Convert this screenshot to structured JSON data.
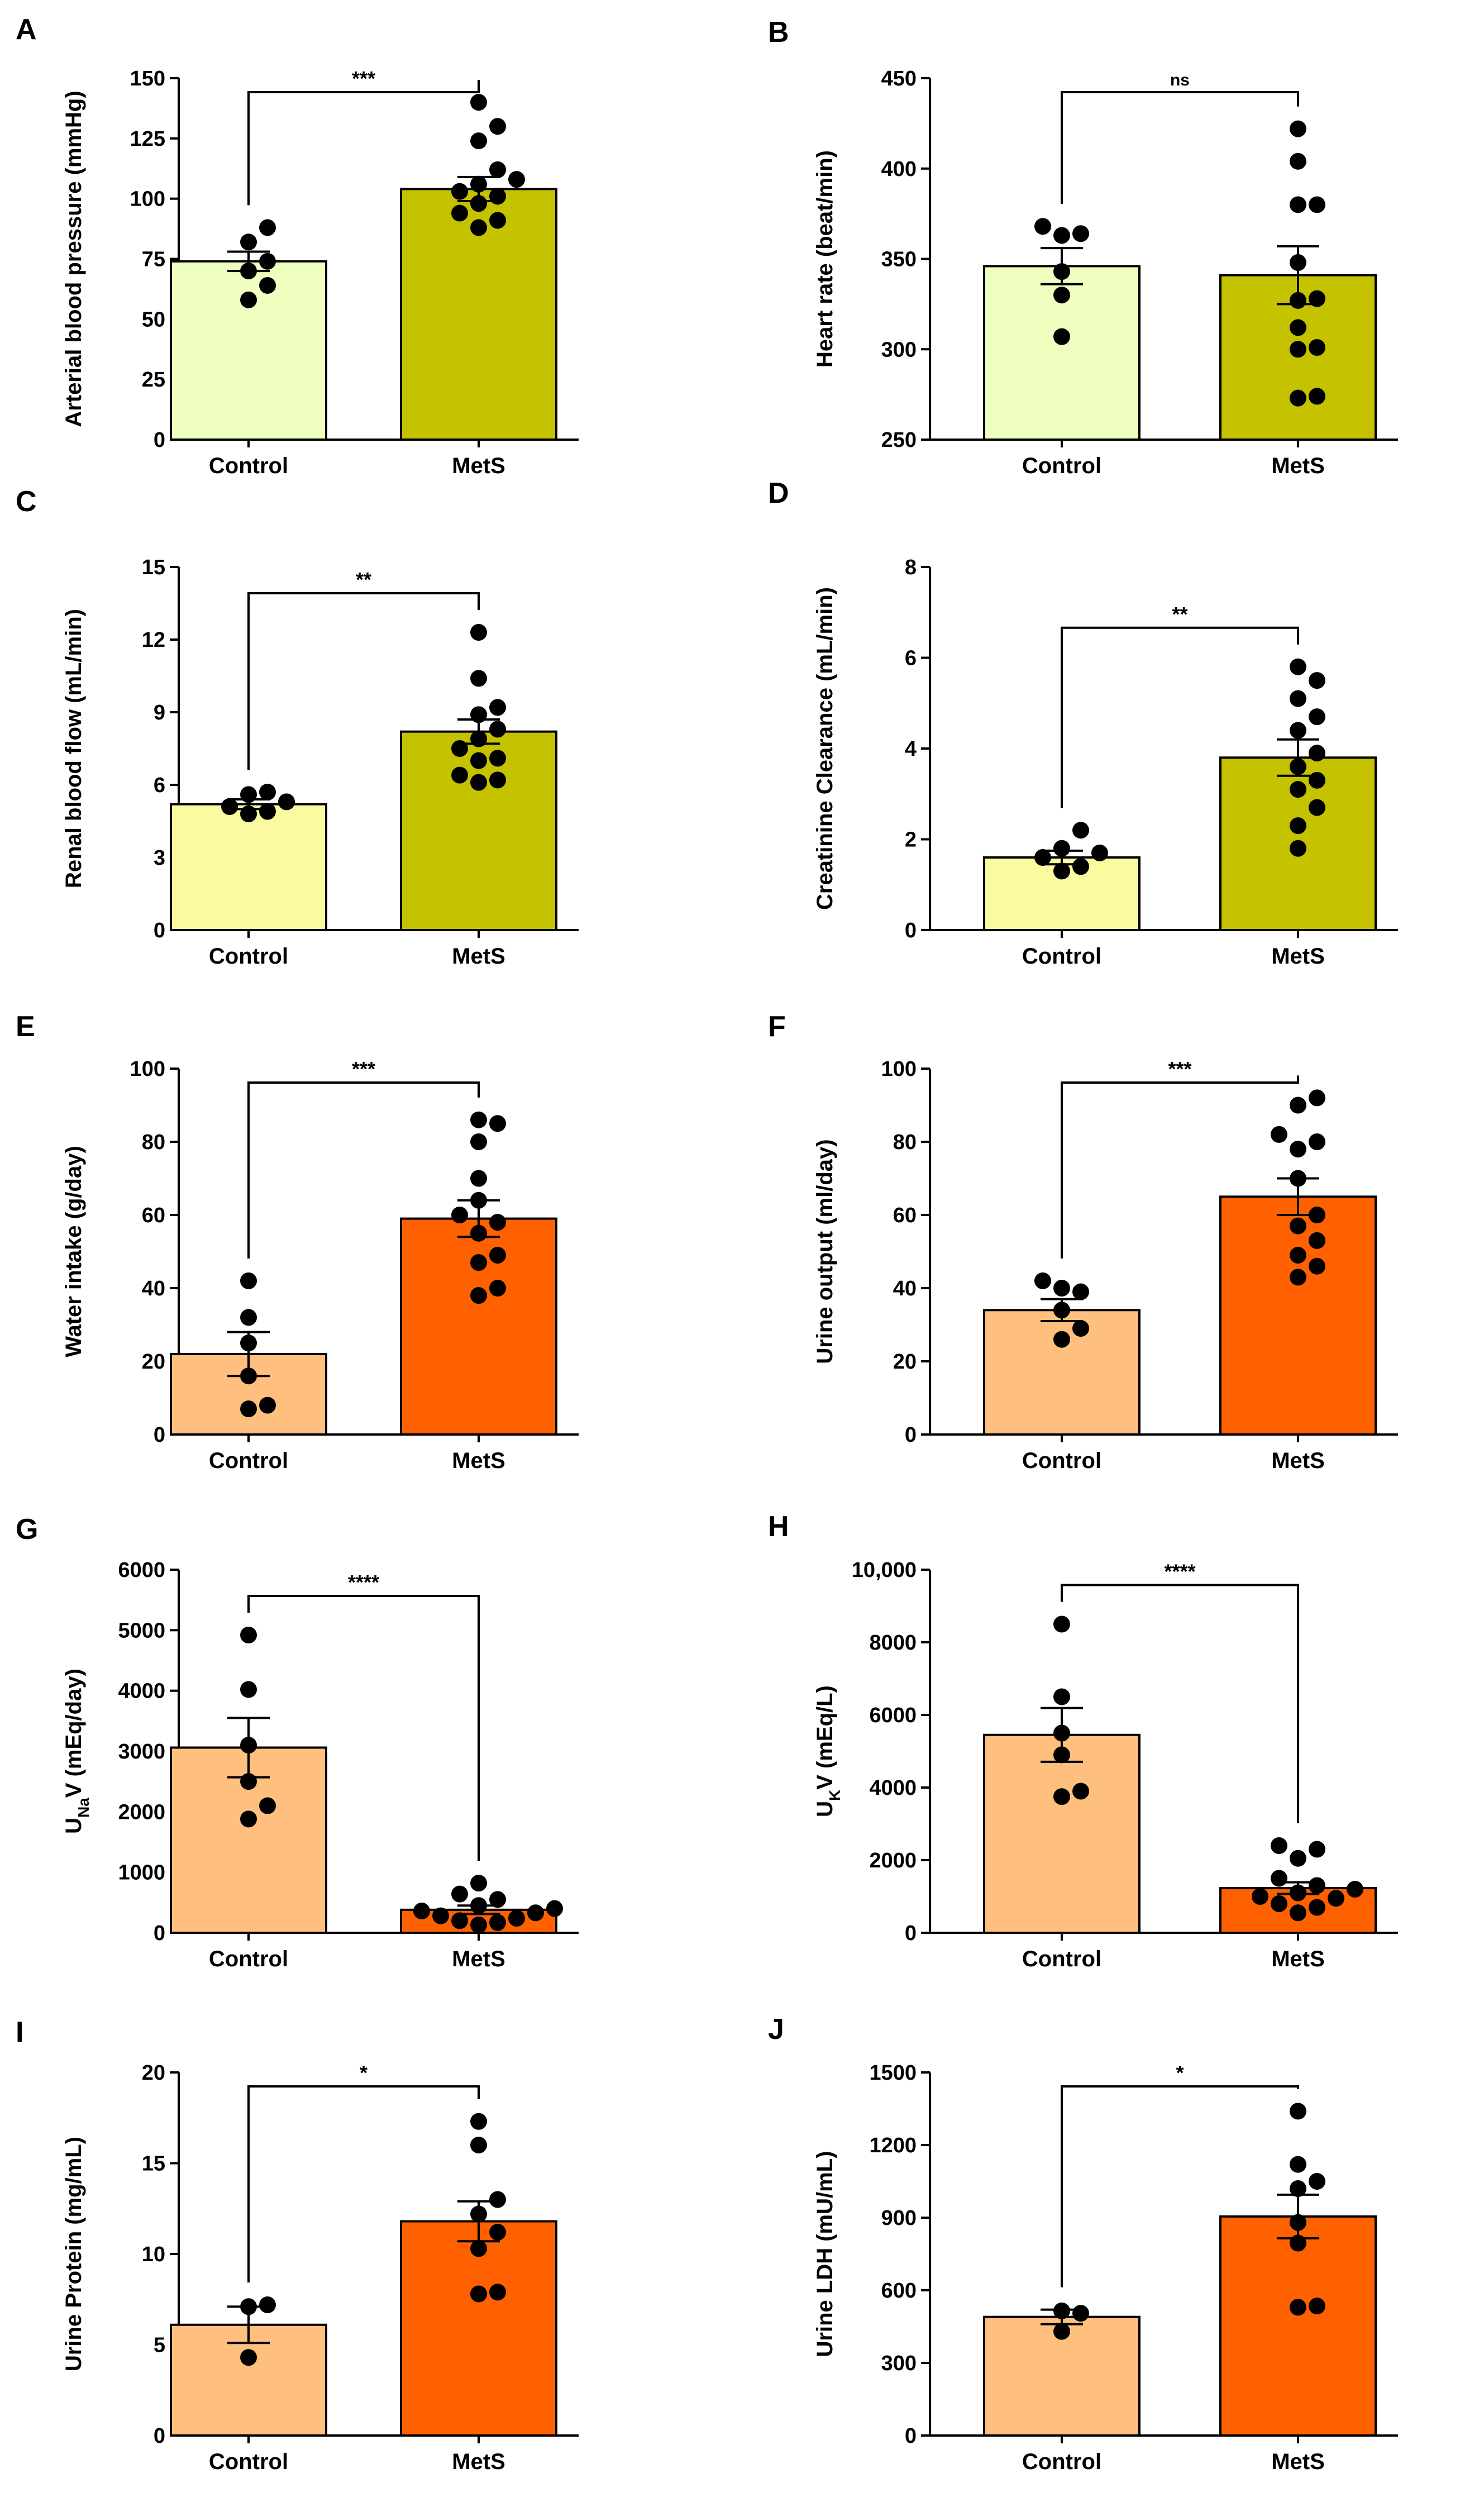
{
  "chart_data": [
    {
      "panel": "A",
      "type": "bar",
      "categories": [
        "Control",
        "MetS"
      ],
      "values": [
        74,
        104
      ],
      "sem": [
        4,
        5
      ],
      "colors": [
        "#eeffc0",
        "#c5c200"
      ],
      "points": [
        [
          58,
          64,
          70,
          74,
          82,
          88
        ],
        [
          88,
          91,
          94,
          98,
          101,
          103,
          106,
          108,
          112,
          124,
          130,
          140
        ]
      ],
      "ylim": [
        0,
        150
      ],
      "yticks": [
        0,
        25,
        50,
        75,
        100,
        125,
        150
      ],
      "ytick_labels": [
        "0",
        "25",
        "50",
        "75",
        "100",
        "125",
        "150"
      ],
      "ylabel": "Arterial blood pressure (mmHg)",
      "significance": "***"
    },
    {
      "panel": "B",
      "type": "bar",
      "categories": [
        "Control",
        "MetS"
      ],
      "values": [
        346,
        341
      ],
      "sem": [
        10,
        16
      ],
      "colors": [
        "#eeffc0",
        "#c5c200"
      ],
      "points": [
        [
          307,
          330,
          343,
          363,
          364,
          368
        ],
        [
          273,
          274,
          300,
          301,
          312,
          327,
          328,
          348,
          380,
          380,
          404,
          422
        ]
      ],
      "ylim": [
        250,
        450
      ],
      "yticks": [
        250,
        300,
        350,
        400,
        450
      ],
      "ytick_labels": [
        "250",
        "300",
        "350",
        "400",
        "450"
      ],
      "ylabel": "Heart rate (beat/min)",
      "significance": "ns"
    },
    {
      "panel": "C",
      "type": "bar",
      "categories": [
        "Control",
        "MetS"
      ],
      "values": [
        5.2,
        8.2
      ],
      "sem": [
        0.2,
        0.5
      ],
      "colors": [
        "#fbfaa1",
        "#c5c200"
      ],
      "points": [
        [
          4.8,
          4.9,
          5.1,
          5.3,
          5.6,
          5.7
        ],
        [
          6.1,
          6.2,
          6.4,
          7.0,
          7.1,
          7.5,
          7.9,
          8.3,
          8.9,
          9.2,
          10.4,
          12.3
        ]
      ],
      "ylim": [
        0,
        15
      ],
      "yticks": [
        0,
        3,
        6,
        9,
        12,
        15
      ],
      "ytick_labels": [
        "0",
        "3",
        "6",
        "9",
        "12",
        "15"
      ],
      "ylabel": "Renal blood flow (mL/min)",
      "significance": "**"
    },
    {
      "panel": "D",
      "type": "bar",
      "categories": [
        "Control",
        "MetS"
      ],
      "values": [
        1.6,
        3.8
      ],
      "sem": [
        0.15,
        0.4
      ],
      "colors": [
        "#fbfaa1",
        "#c5c200"
      ],
      "points": [
        [
          1.3,
          1.4,
          1.6,
          1.7,
          1.8,
          2.2
        ],
        [
          1.8,
          2.3,
          2.7,
          3.1,
          3.3,
          3.6,
          3.9,
          4.4,
          4.7,
          5.1,
          5.5,
          5.8
        ]
      ],
      "ylim": [
        0,
        8
      ],
      "yticks": [
        0,
        2,
        4,
        6,
        8
      ],
      "ytick_labels": [
        "0",
        "2",
        "4",
        "6",
        "8"
      ],
      "ylabel": "Creatinine Clearance (mL/min)",
      "significance": "**"
    },
    {
      "panel": "E",
      "type": "bar",
      "categories": [
        "Control",
        "MetS"
      ],
      "values": [
        22,
        59
      ],
      "sem": [
        6,
        5
      ],
      "colors": [
        "#ffbf7f",
        "#ff6000"
      ],
      "points": [
        [
          7,
          8,
          16,
          25,
          32,
          42
        ],
        [
          38,
          40,
          47,
          49,
          55,
          58,
          60,
          64,
          70,
          80,
          85,
          86
        ]
      ],
      "ylim": [
        0,
        100
      ],
      "yticks": [
        0,
        20,
        40,
        60,
        80,
        100
      ],
      "ytick_labels": [
        "0",
        "20",
        "40",
        "60",
        "80",
        "100"
      ],
      "ylabel": "Water intake (g/day)",
      "significance": "***"
    },
    {
      "panel": "F",
      "type": "bar",
      "categories": [
        "Control",
        "MetS"
      ],
      "values": [
        34,
        65
      ],
      "sem": [
        3,
        5
      ],
      "colors": [
        "#ffbf7f",
        "#ff6000"
      ],
      "points": [
        [
          26,
          29,
          34,
          39,
          40,
          42
        ],
        [
          43,
          46,
          49,
          53,
          57,
          60,
          70,
          78,
          80,
          82,
          90,
          92
        ]
      ],
      "ylim": [
        0,
        100
      ],
      "yticks": [
        0,
        20,
        40,
        60,
        80,
        100
      ],
      "ytick_labels": [
        "0",
        "20",
        "40",
        "60",
        "80",
        "100"
      ],
      "ylabel": "Urine output (ml/day)",
      "significance": "***"
    },
    {
      "panel": "G",
      "type": "bar",
      "categories": [
        "Control",
        "MetS"
      ],
      "values": [
        3060,
        380
      ],
      "sem": [
        490,
        70
      ],
      "colors": [
        "#ffbf7f",
        "#ff6000"
      ],
      "points": [
        [
          1880,
          2100,
          2500,
          3100,
          4020,
          4920
        ],
        [
          130,
          170,
          200,
          240,
          280,
          330,
          360,
          400,
          450,
          550,
          640,
          820
        ]
      ],
      "ylim": [
        0,
        6000
      ],
      "yticks": [
        0,
        1000,
        2000,
        3000,
        4000,
        5000,
        6000
      ],
      "ytick_labels": [
        "0",
        "1000",
        "2000",
        "3000",
        "4000",
        "5000",
        "6000"
      ],
      "ylabel": "UNaV (mEq/day)",
      "ylabel_parts": [
        "U",
        "Na",
        "V (mEq/day)"
      ],
      "significance": "****"
    },
    {
      "panel": "H",
      "type": "bar",
      "categories": [
        "Control",
        "MetS"
      ],
      "values": [
        5450,
        1230
      ],
      "sem": [
        740,
        160
      ],
      "colors": [
        "#ffbf7f",
        "#ff6000"
      ],
      "points": [
        [
          3750,
          3900,
          4900,
          5500,
          6500,
          8500
        ],
        [
          550,
          700,
          800,
          950,
          1000,
          1100,
          1200,
          1300,
          1500,
          2050,
          2300,
          2400
        ]
      ],
      "ylim": [
        0,
        10000
      ],
      "yticks": [
        0,
        2000,
        4000,
        6000,
        8000,
        10000
      ],
      "ytick_labels": [
        "0",
        "2000",
        "4000",
        "6000",
        "8000",
        "10,000"
      ],
      "ylabel": "UKV (mEq/L)",
      "ylabel_parts": [
        "U",
        "K",
        "V (mEq/L)"
      ],
      "significance": "****"
    },
    {
      "panel": "I",
      "type": "bar",
      "categories": [
        "Control",
        "MetS"
      ],
      "values": [
        6.1,
        11.8
      ],
      "sem": [
        1.0,
        1.1
      ],
      "colors": [
        "#ffbf7f",
        "#ff6000"
      ],
      "points": [
        [
          4.3,
          7.1,
          7.2
        ],
        [
          7.8,
          7.9,
          10.3,
          11.2,
          12.2,
          13.0,
          16.0,
          17.3
        ]
      ],
      "ylim": [
        0,
        20
      ],
      "yticks": [
        0,
        5,
        10,
        15,
        20
      ],
      "ytick_labels": [
        "0",
        "5",
        "10",
        "15",
        "20"
      ],
      "ylabel": "Urine Protein (mg/mL)",
      "significance": "*"
    },
    {
      "panel": "J",
      "type": "bar",
      "categories": [
        "Control",
        "MetS"
      ],
      "values": [
        490,
        905
      ],
      "sem": [
        30,
        90
      ],
      "colors": [
        "#ffbf7f",
        "#ff6000"
      ],
      "points": [
        [
          430,
          505,
          515
        ],
        [
          530,
          535,
          795,
          880,
          1020,
          1050,
          1120,
          1340
        ]
      ],
      "ylim": [
        0,
        1500
      ],
      "yticks": [
        0,
        300,
        600,
        900,
        1200,
        1500
      ],
      "ytick_labels": [
        "0",
        "300",
        "600",
        "900",
        "1200",
        "1500"
      ],
      "ylabel": "Urine LDH (mU/mL)",
      "significance": "*"
    }
  ]
}
